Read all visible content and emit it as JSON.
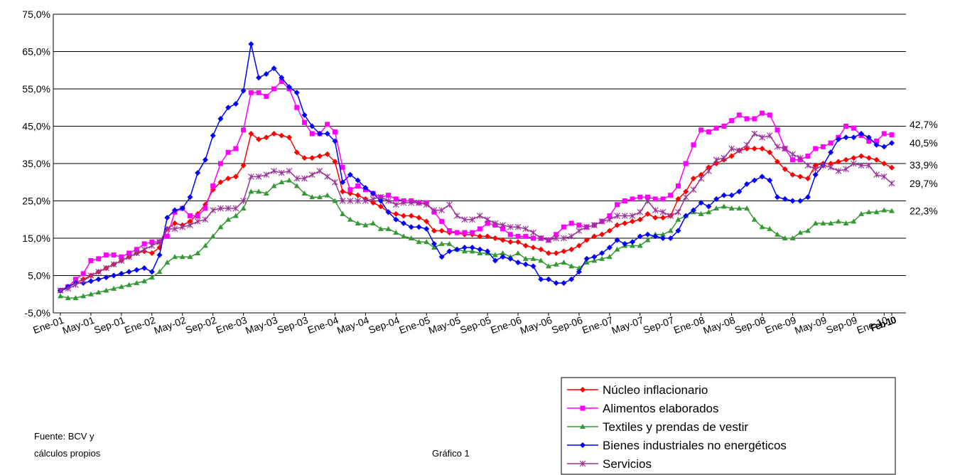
{
  "chart_data": {
    "type": "line",
    "categories": [
      "Ene-01",
      null,
      null,
      null,
      "May-01",
      null,
      null,
      null,
      "Sep-01",
      null,
      null,
      null,
      "Ene-02",
      null,
      null,
      null,
      "May-02",
      null,
      null,
      null,
      "Sep-02",
      null,
      null,
      null,
      "Ene-03",
      null,
      null,
      null,
      "May-03",
      null,
      null,
      null,
      "Sep-03",
      null,
      null,
      null,
      "Ene-04",
      null,
      null,
      null,
      "May-04",
      null,
      null,
      null,
      "Sep-04",
      null,
      null,
      null,
      "Ene-05",
      null,
      null,
      null,
      "May-05",
      null,
      null,
      null,
      "Sep-05",
      null,
      null,
      null,
      "Ene-06",
      null,
      null,
      null,
      "May-06",
      null,
      null,
      null,
      "Sep-06",
      null,
      null,
      null,
      "Ene-07",
      null,
      null,
      null,
      "May-07",
      null,
      null,
      null,
      "Sep-07",
      null,
      null,
      null,
      "Ene-08",
      null,
      null,
      null,
      "May-08",
      null,
      null,
      null,
      "Sep-08",
      null,
      null,
      null,
      "Ene-09",
      null,
      null,
      null,
      "May-09",
      null,
      null,
      null,
      "Sep-09",
      null,
      null,
      null,
      "Ene-10",
      "Feb-10"
    ],
    "series": [
      {
        "name": "Núcleo inflacionario",
        "color": "#ff0000",
        "marker": "diamond",
        "end_label": "33,9%",
        "values": [
          1,
          2,
          3,
          4,
          5,
          6,
          7,
          8,
          9,
          10,
          11,
          11.5,
          11,
          12.5,
          17.5,
          19,
          18.5,
          19.5,
          21.5,
          24,
          28,
          30,
          31,
          31.5,
          34.5,
          43,
          41.5,
          42,
          43,
          42.5,
          42,
          38,
          36.5,
          36.5,
          37,
          37.5,
          35.5,
          27.5,
          27,
          26.5,
          25.5,
          24.5,
          23.5,
          22,
          21.5,
          21,
          21,
          20.5,
          19.5,
          17,
          17,
          16.5,
          16.5,
          16,
          16,
          15.5,
          15.5,
          15,
          14.5,
          14,
          14,
          13,
          12.5,
          12,
          11,
          11,
          11.5,
          12,
          13,
          14.5,
          15.5,
          16,
          17,
          18.5,
          19,
          19.5,
          20,
          21.5,
          20.5,
          20.5,
          21,
          25.5,
          27.5,
          31,
          32,
          34,
          35,
          36,
          37,
          38.5,
          39,
          39,
          39,
          38,
          35.5,
          33.5,
          32,
          31.5,
          31,
          34.5,
          35,
          35,
          35.5,
          36,
          36.5,
          37,
          36.5,
          36,
          35,
          33.9
        ]
      },
      {
        "name": "Alimentos elaborados",
        "color": "#ff00ff",
        "marker": "square",
        "end_label": "42,7%",
        "values": [
          1,
          2,
          4,
          5.5,
          9,
          9.5,
          10.5,
          10.5,
          10,
          11,
          12,
          13.5,
          14,
          14,
          15.5,
          22,
          23,
          21,
          21,
          23,
          29,
          35,
          38,
          39,
          44,
          54,
          54,
          53,
          55,
          57,
          55,
          50,
          46,
          43,
          43,
          45.5,
          43.5,
          34,
          28,
          29,
          28,
          27,
          26,
          26.5,
          25.5,
          25,
          25,
          24.5,
          24.5,
          22,
          19.5,
          17,
          16.5,
          16.5,
          16.5,
          17.5,
          19,
          18.5,
          17.5,
          16,
          15.5,
          15.5,
          15,
          15,
          14.5,
          16,
          18,
          19,
          18.5,
          18,
          18.5,
          19.5,
          21,
          24,
          25,
          25.5,
          26,
          26,
          25.5,
          25.5,
          26.5,
          29,
          35,
          40,
          44,
          43.5,
          44.5,
          45,
          46.5,
          48,
          47,
          47,
          48.5,
          48,
          44,
          39,
          36,
          36,
          37,
          39,
          39.5,
          40.5,
          42,
          45,
          44.5,
          42.5,
          41,
          41,
          43,
          42.7
        ]
      },
      {
        "name": "Textiles y prendas de vestir",
        "color": "#339933",
        "marker": "triangle",
        "end_label": "22,3%",
        "values": [
          -0.5,
          -1,
          -1,
          -0.5,
          0,
          0.5,
          1,
          1.5,
          2,
          2.5,
          3,
          3.5,
          4.5,
          6,
          8.5,
          10,
          10,
          10,
          11,
          13,
          15.5,
          18,
          20,
          21,
          23,
          27.5,
          27.5,
          27,
          29,
          30,
          30.5,
          29,
          27,
          26,
          26,
          26.5,
          25,
          21.5,
          20,
          19,
          18.5,
          19,
          17.5,
          17.5,
          16.5,
          15.5,
          15,
          14,
          14,
          12.5,
          13.5,
          13.5,
          12,
          11.5,
          11.5,
          11,
          11,
          10.5,
          11,
          10,
          11,
          9.5,
          9.5,
          9,
          7.5,
          8,
          8.5,
          7.5,
          7,
          8.5,
          9,
          9.5,
          10,
          12,
          13,
          13,
          13,
          14.5,
          16,
          16,
          17,
          20,
          21,
          22,
          21.5,
          22,
          23,
          23.5,
          23,
          23,
          23,
          20,
          18,
          17.5,
          16,
          15,
          15,
          16.5,
          17,
          19,
          19,
          19,
          19.5,
          19,
          19.5,
          21.5,
          22,
          22,
          22.5,
          22.3
        ]
      },
      {
        "name": "Bienes industriales no energéticos",
        "color": "#0000ff",
        "marker": "diamond",
        "end_label": "40,5%",
        "values": [
          1,
          2,
          3,
          3,
          3.5,
          4,
          4.5,
          5,
          5.5,
          6,
          6.5,
          7,
          6,
          10.5,
          20.5,
          22.5,
          23,
          26,
          32.5,
          36,
          42.5,
          47,
          50,
          51,
          54.5,
          67,
          58,
          59,
          60.5,
          58,
          55.5,
          54,
          48,
          45,
          43,
          43,
          41,
          30,
          32,
          30.5,
          28.5,
          27,
          25,
          22,
          20,
          19,
          18,
          18,
          17.5,
          13.5,
          10,
          11.5,
          12,
          12.5,
          12.5,
          12,
          11.5,
          9,
          10,
          9.5,
          8.5,
          8,
          7.5,
          4,
          4,
          3,
          3,
          4,
          6,
          9.5,
          10,
          11,
          12.5,
          14.5,
          13.5,
          14,
          15.5,
          16,
          15.5,
          15,
          15,
          17,
          21,
          22.5,
          24.5,
          23.5,
          25.5,
          26.5,
          26.5,
          27.5,
          29.5,
          30.5,
          31.5,
          30.5,
          26,
          25.5,
          25,
          25,
          26,
          32,
          34.5,
          38,
          41.5,
          42,
          42,
          43,
          42,
          40,
          39.5,
          40.5
        ]
      },
      {
        "name": "Servicios",
        "color": "#993399",
        "marker": "star",
        "end_label": "29,7%",
        "values": [
          1,
          1.5,
          2.5,
          3.5,
          5,
          6,
          7,
          8,
          9,
          10,
          11,
          12,
          13,
          14,
          17.5,
          17.5,
          18,
          18.5,
          19.5,
          20,
          22.5,
          23,
          23,
          23,
          25,
          31.5,
          31.5,
          32,
          33,
          32.5,
          33,
          31,
          31,
          32,
          33,
          31.5,
          30,
          25,
          25,
          25,
          25,
          25.5,
          26,
          25,
          24,
          24.5,
          24.5,
          24.5,
          24,
          22.5,
          22.5,
          24,
          21,
          20,
          20,
          21,
          20,
          19,
          18.5,
          18,
          18,
          17.5,
          16.5,
          15,
          14.5,
          15,
          15,
          15.5,
          17,
          18,
          18.5,
          19.5,
          20,
          21,
          21,
          21,
          22,
          25,
          22.5,
          22,
          21,
          22,
          26,
          28,
          31,
          33,
          36,
          36.5,
          39,
          38.5,
          40,
          43,
          42,
          42.5,
          39.5,
          39,
          37.5,
          36.5,
          34.5,
          33.5,
          34.5,
          34,
          33,
          33.5,
          35,
          34.5,
          34.5,
          32,
          31.5,
          29.7
        ]
      }
    ],
    "ylim": [
      -5,
      75
    ],
    "yticks": [
      {
        "value": -5,
        "label": "-5,0%"
      },
      {
        "value": 5,
        "label": "5,0%"
      },
      {
        "value": 15,
        "label": "15,0%"
      },
      {
        "value": 25,
        "label": "25,0%"
      },
      {
        "value": 35,
        "label": "35,0%"
      },
      {
        "value": 45,
        "label": "45,0%"
      },
      {
        "value": 55,
        "label": "55,0%"
      },
      {
        "value": 65,
        "label": "65,0%"
      },
      {
        "value": 75,
        "label": "75,0%"
      }
    ],
    "grid": true,
    "legend": "bottom-right",
    "source": [
      "Fuente: BCV y",
      "cálculos propios"
    ],
    "caption": "Gráfico 1"
  }
}
